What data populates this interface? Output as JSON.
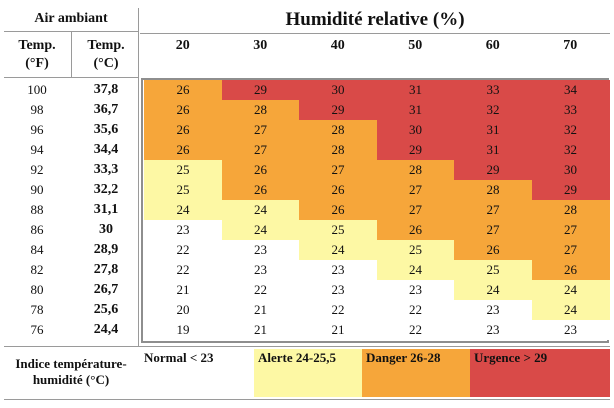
{
  "left_header": {
    "title": "Air ambiant",
    "col_f_label": "Temp.",
    "col_f_unit": "(°F)",
    "col_c_label": "Temp.",
    "col_c_unit": "(°C)"
  },
  "right_header": {
    "title": "Humidité relative (%)",
    "humidity_levels": [
      "20",
      "30",
      "40",
      "50",
      "60",
      "70"
    ]
  },
  "rows": [
    {
      "f": "100",
      "c": "37,8",
      "values": [
        "26",
        "29",
        "30",
        "31",
        "33",
        "34"
      ]
    },
    {
      "f": "98",
      "c": "36,7",
      "values": [
        "26",
        "28",
        "29",
        "31",
        "32",
        "33"
      ]
    },
    {
      "f": "96",
      "c": "35,6",
      "values": [
        "26",
        "27",
        "28",
        "30",
        "31",
        "32"
      ]
    },
    {
      "f": "94",
      "c": "34,4",
      "values": [
        "26",
        "27",
        "28",
        "29",
        "31",
        "32"
      ]
    },
    {
      "f": "92",
      "c": "33,3",
      "values": [
        "25",
        "26",
        "27",
        "28",
        "29",
        "30"
      ]
    },
    {
      "f": "90",
      "c": "32,2",
      "values": [
        "25",
        "26",
        "26",
        "27",
        "28",
        "29"
      ]
    },
    {
      "f": "88",
      "c": "31,1",
      "values": [
        "24",
        "24",
        "26",
        "27",
        "27",
        "28"
      ]
    },
    {
      "f": "86",
      "c": "30",
      "values": [
        "23",
        "24",
        "25",
        "26",
        "27",
        "27"
      ]
    },
    {
      "f": "84",
      "c": "28,9",
      "values": [
        "22",
        "23",
        "24",
        "25",
        "26",
        "27"
      ]
    },
    {
      "f": "82",
      "c": "27,8",
      "values": [
        "22",
        "23",
        "23",
        "24",
        "25",
        "26"
      ]
    },
    {
      "f": "80",
      "c": "26,7",
      "values": [
        "21",
        "22",
        "23",
        "23",
        "24",
        "24"
      ]
    },
    {
      "f": "78",
      "c": "25,6",
      "values": [
        "20",
        "21",
        "22",
        "22",
        "23",
        "24"
      ]
    },
    {
      "f": "76",
      "c": "24,4",
      "values": [
        "19",
        "21",
        "21",
        "22",
        "23",
        "23"
      ]
    }
  ],
  "legend": {
    "label": "Indice température-humidité (°C)",
    "items": [
      {
        "text": "Normal < 23",
        "color": "#ffffff"
      },
      {
        "text": "Alerte 24-25,5",
        "color": "#fdf8a4"
      },
      {
        "text": "Danger 26-28",
        "color": "#f6a63a"
      },
      {
        "text": "Urgence > 29",
        "color": "#d94a48"
      }
    ]
  },
  "colors": {
    "normal": "#ffffff",
    "alerte": "#fdf8a4",
    "danger": "#f6a63a",
    "urgence": "#d94a48"
  }
}
